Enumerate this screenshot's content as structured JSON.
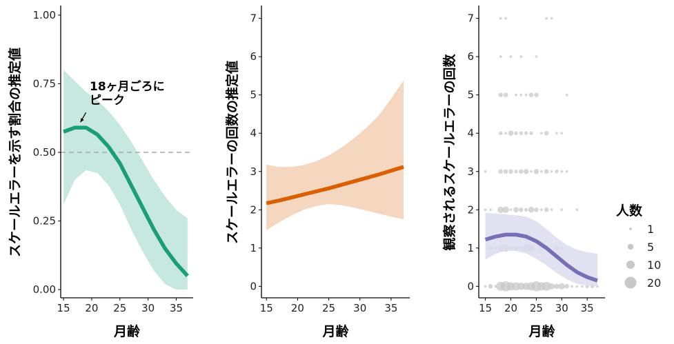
{
  "chart_data": [
    {
      "type": "line",
      "xlabel": "月齢",
      "ylabel": "スケールエラーを示す割合の推定値",
      "xlim": [
        14.5,
        38
      ],
      "ylim": [
        -0.03,
        1.03
      ],
      "xticks": [
        15,
        20,
        25,
        30,
        35
      ],
      "yticks": [
        0,
        0.25,
        0.5,
        0.75,
        1.0
      ],
      "ytick_labels": [
        "0.00",
        "0.25",
        "0.50",
        "0.75",
        "1.00"
      ],
      "reference_line": 0.5,
      "annotation": {
        "lines": [
          "18ヶ月ごろに",
          "ピーク"
        ],
        "arrow_to": [
          18,
          0.59
        ]
      },
      "color": "#1b9e77",
      "band_color": "#c6e8de",
      "x": [
        15,
        17,
        19,
        21,
        23,
        25,
        27,
        29,
        31,
        33,
        35,
        37
      ],
      "fit": [
        0.575,
        0.59,
        0.59,
        0.565,
        0.52,
        0.46,
        0.38,
        0.3,
        0.22,
        0.15,
        0.095,
        0.05
      ],
      "upper": [
        0.8,
        0.76,
        0.72,
        0.69,
        0.65,
        0.6,
        0.54,
        0.47,
        0.4,
        0.34,
        0.29,
        0.26
      ],
      "lower": [
        0.31,
        0.4,
        0.435,
        0.425,
        0.38,
        0.31,
        0.22,
        0.14,
        0.07,
        0.02,
        0.0,
        0.0
      ]
    },
    {
      "type": "line",
      "xlabel": "月齢",
      "ylabel": "スケールエラーの回数の推定値",
      "xlim": [
        14.2,
        38
      ],
      "ylim": [
        -0.3,
        7.3
      ],
      "xticks": [
        15,
        20,
        25,
        30,
        35
      ],
      "yticks": [
        0,
        1,
        2,
        3,
        4,
        5,
        6,
        7
      ],
      "ytick_labels": [
        "0",
        "1",
        "2",
        "3",
        "4",
        "5",
        "6",
        "7"
      ],
      "color": "#d95f02",
      "band_color": "#f5d6bf",
      "x": [
        15,
        17,
        19,
        21,
        23,
        25,
        27,
        29,
        31,
        33,
        35,
        37
      ],
      "fit": [
        2.17,
        2.24,
        2.32,
        2.4,
        2.48,
        2.56,
        2.65,
        2.74,
        2.83,
        2.92,
        3.02,
        3.12
      ],
      "upper": [
        3.18,
        3.12,
        3.12,
        3.17,
        3.27,
        3.42,
        3.62,
        3.86,
        4.14,
        4.46,
        4.9,
        5.38
      ],
      "lower": [
        1.47,
        1.67,
        1.85,
        2.0,
        2.1,
        2.15,
        2.12,
        2.06,
        1.98,
        1.9,
        1.82,
        1.75
      ]
    },
    {
      "type": "scatter",
      "xlabel": "月齢",
      "ylabel": "観察されるスケールエラーの回数",
      "xlim": [
        13.7,
        38.5
      ],
      "ylim": [
        -0.3,
        7.3
      ],
      "xticks": [
        15,
        20,
        25,
        30,
        35
      ],
      "yticks": [
        0,
        1,
        2,
        3,
        4,
        5,
        6,
        7
      ],
      "ytick_labels": [
        "0",
        "1",
        "2",
        "3",
        "4",
        "5",
        "6",
        "7"
      ],
      "color": "#7570b3",
      "band_color": "#dddcee",
      "point_color": "#c8c8c8",
      "x": [
        15,
        17,
        19,
        21,
        23,
        25,
        27,
        29,
        31,
        33,
        35,
        37
      ],
      "fit": [
        1.22,
        1.3,
        1.35,
        1.35,
        1.3,
        1.18,
        1.0,
        0.78,
        0.56,
        0.37,
        0.24,
        0.15
      ],
      "upper": [
        1.92,
        1.9,
        1.88,
        1.86,
        1.82,
        1.7,
        1.5,
        1.27,
        1.08,
        0.96,
        0.89,
        0.85
      ],
      "lower": [
        0.7,
        0.85,
        0.93,
        0.92,
        0.86,
        0.72,
        0.55,
        0.35,
        0.18,
        0.07,
        0.02,
        0.0
      ],
      "points": [
        [
          18,
          7,
          1
        ],
        [
          19,
          7,
          1
        ],
        [
          27,
          7,
          1
        ],
        [
          28,
          7,
          1
        ],
        [
          18,
          6,
          1
        ],
        [
          20,
          6,
          1
        ],
        [
          22,
          6,
          1
        ],
        [
          25,
          6,
          1
        ],
        [
          18,
          5,
          3
        ],
        [
          19,
          5,
          3
        ],
        [
          21,
          5,
          1
        ],
        [
          22,
          5,
          1
        ],
        [
          23,
          5,
          1
        ],
        [
          24,
          5,
          3
        ],
        [
          25,
          5,
          3
        ],
        [
          31,
          5,
          1
        ],
        [
          18,
          4,
          2
        ],
        [
          19,
          4,
          1
        ],
        [
          20,
          4,
          4
        ],
        [
          21,
          4,
          2
        ],
        [
          22,
          4,
          2
        ],
        [
          23,
          4,
          2
        ],
        [
          24,
          4,
          2
        ],
        [
          26,
          4,
          1
        ],
        [
          27,
          4,
          3
        ],
        [
          29,
          4,
          1
        ],
        [
          30,
          4,
          1
        ],
        [
          15,
          3,
          1
        ],
        [
          18,
          3,
          3
        ],
        [
          19,
          3,
          3
        ],
        [
          20,
          3,
          3
        ],
        [
          21,
          3,
          2
        ],
        [
          22,
          3,
          3
        ],
        [
          23,
          3,
          4
        ],
        [
          24,
          3,
          1
        ],
        [
          25,
          3,
          4
        ],
        [
          26,
          3,
          1
        ],
        [
          27,
          3,
          3
        ],
        [
          28,
          3,
          1
        ],
        [
          29,
          3,
          2
        ],
        [
          30,
          3,
          1
        ],
        [
          31,
          3,
          1
        ],
        [
          15,
          2,
          1
        ],
        [
          16,
          2,
          1
        ],
        [
          18,
          2,
          6
        ],
        [
          19,
          2,
          6
        ],
        [
          20,
          2,
          1
        ],
        [
          21,
          2,
          4
        ],
        [
          22,
          2,
          3
        ],
        [
          23,
          2,
          2
        ],
        [
          24,
          2,
          5
        ],
        [
          25,
          2,
          3
        ],
        [
          26,
          2,
          1
        ],
        [
          27,
          2,
          3
        ],
        [
          28,
          2,
          1
        ],
        [
          30,
          2,
          1
        ],
        [
          33,
          2,
          1
        ],
        [
          16,
          1,
          3
        ],
        [
          17,
          1,
          1
        ],
        [
          18,
          1,
          6
        ],
        [
          19,
          1,
          8
        ],
        [
          20,
          1,
          2
        ],
        [
          21,
          1,
          4
        ],
        [
          22,
          1,
          3
        ],
        [
          23,
          1,
          8
        ],
        [
          24,
          1,
          8
        ],
        [
          26,
          1,
          5
        ],
        [
          27,
          1,
          2
        ],
        [
          29,
          1,
          4
        ],
        [
          30,
          1,
          1
        ],
        [
          15,
          0,
          1
        ],
        [
          16,
          0,
          3
        ],
        [
          17,
          0,
          1
        ],
        [
          18,
          0,
          12
        ],
        [
          19,
          0,
          15
        ],
        [
          20,
          0,
          10
        ],
        [
          21,
          0,
          10
        ],
        [
          22,
          0,
          8
        ],
        [
          23,
          0,
          8
        ],
        [
          24,
          0,
          10
        ],
        [
          25,
          0,
          15
        ],
        [
          26,
          0,
          10
        ],
        [
          27,
          0,
          12
        ],
        [
          28,
          0,
          6
        ],
        [
          29,
          0,
          4
        ],
        [
          30,
          0,
          6
        ],
        [
          31,
          0,
          3
        ],
        [
          32,
          0,
          1
        ],
        [
          33,
          0,
          1
        ],
        [
          34,
          0,
          1
        ],
        [
          35,
          0,
          2
        ],
        [
          36,
          0,
          2
        ],
        [
          37,
          0,
          1
        ]
      ],
      "legend": {
        "title": "人数",
        "sizes": [
          1,
          5,
          10,
          20
        ],
        "labels": [
          "1",
          "5",
          "10",
          "20"
        ],
        "placement": "right"
      }
    }
  ]
}
